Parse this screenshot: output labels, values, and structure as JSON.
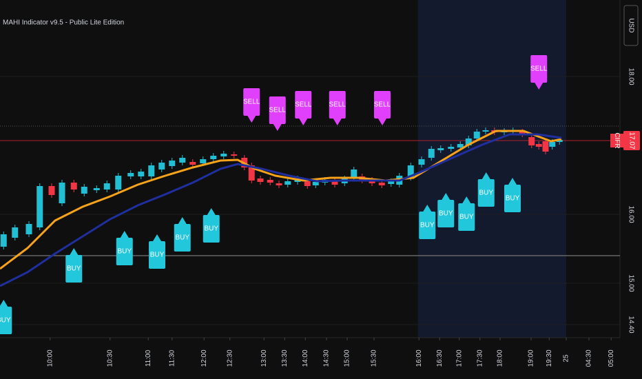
{
  "chart_data": {
    "type": "candlestick",
    "title": "MAHI Indicator v9.5 - Public Lite Edition",
    "currency": "USD",
    "symbol": "CIFR",
    "last_price": 17.07,
    "up_color": "#22bfd4",
    "down_color": "#f23645",
    "grid": true,
    "xlim": [
      0,
      120
    ],
    "ylim": [
      14.21,
      19.11
    ],
    "yticks": [
      {
        "value": 14.4,
        "label": "14.40"
      },
      {
        "value": 15,
        "label": "15.00"
      },
      {
        "value": 16,
        "label": "16.00"
      },
      {
        "value": 18,
        "label": "18.00"
      }
    ],
    "xticks": [
      {
        "value": 9.7,
        "label": "10:00"
      },
      {
        "value": 21.3,
        "label": "10:30"
      },
      {
        "value": 28.7,
        "label": "11:00"
      },
      {
        "value": 33.3,
        "label": "11:30"
      },
      {
        "value": 39.5,
        "label": "12:00"
      },
      {
        "value": 44.5,
        "label": "12:30"
      },
      {
        "value": 51.1,
        "label": "13:00"
      },
      {
        "value": 55.1,
        "label": "13:30"
      },
      {
        "value": 59.1,
        "label": "14:00"
      },
      {
        "value": 63.2,
        "label": "14:30"
      },
      {
        "value": 67.2,
        "label": "15:00"
      },
      {
        "value": 72.4,
        "label": "15:30"
      },
      {
        "value": 81.1,
        "label": "16:00"
      },
      {
        "value": 85.1,
        "label": "16:30"
      },
      {
        "value": 88.9,
        "label": "17:00"
      },
      {
        "value": 92.9,
        "label": "17:30"
      },
      {
        "value": 96.8,
        "label": "18:00"
      },
      {
        "value": 102.8,
        "label": "19:00"
      },
      {
        "value": 106.3,
        "label": "19:30"
      },
      {
        "value": 109.6,
        "label": "25"
      },
      {
        "value": 114,
        "label": "04:30"
      },
      {
        "value": 118.3,
        "label": "05:00"
      }
    ],
    "shade_x": [
      80.9,
      109.6
    ],
    "hlines": [
      {
        "value": 17.28,
        "style": "dotted"
      },
      {
        "value": 15.4,
        "style": "solid"
      }
    ],
    "candles": {
      "x": [
        0.7,
        2.9,
        5.6,
        7.7,
        10,
        12,
        14.3,
        16.3,
        18.7,
        20.7,
        22.9,
        25.3,
        27.3,
        29.3,
        31.3,
        33.3,
        35.3,
        37.3,
        39.3,
        41.3,
        43.3,
        45.3,
        47.3,
        48.7,
        50.4,
        52.3,
        54,
        55.7,
        57.6,
        59.5,
        61.1,
        62.9,
        64.8,
        66.7,
        68.5,
        70.1,
        72,
        73.9,
        75.7,
        77.3,
        79.5,
        81.6,
        83.5,
        85.3,
        87.3,
        89.1,
        90.7,
        92.3,
        94,
        95.7,
        97.6,
        99.3,
        101.1,
        102.9,
        104.3,
        105.6,
        106.9,
        108.3
      ],
      "open": [
        15.53,
        15.66,
        15.71,
        15.81,
        16.41,
        16.16,
        16.46,
        16.3,
        16.35,
        16.36,
        16.36,
        16.55,
        16.55,
        16.55,
        16.65,
        16.7,
        16.75,
        16.76,
        16.74,
        16.8,
        16.84,
        16.87,
        16.82,
        16.71,
        16.52,
        16.5,
        16.45,
        16.43,
        16.47,
        16.48,
        16.42,
        16.46,
        16.48,
        16.45,
        16.54,
        16.55,
        16.5,
        16.46,
        16.44,
        16.43,
        16.53,
        16.72,
        16.82,
        16.93,
        16.95,
        16.97,
        17.0,
        17.1,
        17.2,
        17.22,
        17.19,
        17.2,
        17.2,
        17.12,
        17.02,
        17.06,
        16.98,
        17.05
      ],
      "high": [
        15.75,
        15.85,
        15.9,
        16.45,
        16.45,
        16.5,
        16.5,
        16.44,
        16.42,
        16.49,
        16.6,
        16.64,
        16.66,
        16.75,
        16.79,
        16.82,
        16.86,
        16.8,
        16.84,
        16.89,
        16.92,
        16.91,
        16.86,
        16.75,
        16.56,
        16.54,
        16.49,
        16.52,
        16.56,
        16.52,
        16.51,
        16.54,
        16.52,
        16.56,
        16.69,
        16.59,
        16.54,
        16.5,
        16.52,
        16.6,
        16.75,
        16.84,
        16.99,
        17.0,
        17.02,
        17.06,
        17.14,
        17.24,
        17.26,
        17.26,
        17.25,
        17.26,
        17.24,
        17.16,
        17.06,
        17.1,
        17.09,
        17.12
      ],
      "low": [
        15.49,
        15.62,
        15.67,
        15.77,
        16.24,
        16.12,
        16.32,
        16.26,
        16.31,
        16.32,
        16.32,
        16.51,
        16.51,
        16.51,
        16.61,
        16.66,
        16.71,
        16.68,
        16.7,
        16.76,
        16.8,
        16.81,
        16.64,
        16.45,
        16.43,
        16.42,
        16.38,
        16.39,
        16.43,
        16.37,
        16.38,
        16.42,
        16.39,
        16.41,
        16.5,
        16.45,
        16.41,
        16.38,
        16.4,
        16.39,
        16.49,
        16.68,
        16.78,
        16.89,
        16.91,
        16.93,
        16.96,
        17.06,
        17.16,
        17.15,
        17.15,
        17.16,
        17.12,
        16.96,
        16.94,
        16.87,
        16.94,
        17.01
      ],
      "close": [
        15.71,
        15.81,
        15.86,
        16.41,
        16.28,
        16.46,
        16.36,
        16.4,
        16.38,
        16.45,
        16.56,
        16.6,
        16.62,
        16.71,
        16.75,
        16.78,
        16.82,
        16.72,
        16.8,
        16.85,
        16.88,
        16.85,
        16.68,
        16.49,
        16.47,
        16.46,
        16.42,
        16.48,
        16.52,
        16.41,
        16.47,
        16.5,
        16.43,
        16.52,
        16.65,
        16.49,
        16.45,
        16.42,
        16.48,
        16.56,
        16.71,
        16.8,
        16.95,
        16.96,
        16.98,
        17.02,
        17.1,
        17.2,
        17.22,
        17.19,
        17.21,
        17.22,
        17.16,
        17.0,
        16.98,
        16.91,
        17.05,
        17.08
      ]
    },
    "lines": [
      {
        "color": "#f7a21b",
        "x": [
          0,
          5.33,
          10.67,
          16,
          21.33,
          26.67,
          32,
          37.33,
          42.67,
          46,
          49.33,
          53.33,
          58.67,
          64,
          69.33,
          74.67,
          80,
          84,
          90.67,
          96,
          101.33,
          106.67,
          108.67
        ],
        "values": [
          15.21,
          15.51,
          15.91,
          16.11,
          16.26,
          16.43,
          16.56,
          16.68,
          16.78,
          16.79,
          16.66,
          16.56,
          16.49,
          16.53,
          16.53,
          16.49,
          16.53,
          16.71,
          17.01,
          17.21,
          17.21,
          17.06,
          17.09
        ]
      },
      {
        "color": "#1f2f9e",
        "x": [
          0,
          5.33,
          10.67,
          16,
          21.33,
          26.67,
          32,
          37.33,
          42.67,
          46,
          50.67,
          56,
          61.33,
          66.67,
          72,
          77.33,
          81.33,
          86.67,
          93.33,
          98.67,
          104,
          108.67
        ],
        "values": [
          14.96,
          15.16,
          15.43,
          15.68,
          15.93,
          16.13,
          16.29,
          16.46,
          16.66,
          16.73,
          16.66,
          16.56,
          16.48,
          16.49,
          16.49,
          16.49,
          16.61,
          16.79,
          17.01,
          17.16,
          17.16,
          17.11
        ]
      }
    ],
    "signals": [
      {
        "label": "BUY",
        "x": 0.7,
        "y": 14.76
      },
      {
        "label": "BUY",
        "x": 14.3,
        "y": 15.51
      },
      {
        "label": "BUY",
        "x": 24.1,
        "y": 15.76
      },
      {
        "label": "BUY",
        "x": 30.4,
        "y": 15.71
      },
      {
        "label": "BUY",
        "x": 35.3,
        "y": 15.96
      },
      {
        "label": "BUY",
        "x": 40.9,
        "y": 16.09
      },
      {
        "label": "BUY",
        "x": 82.7,
        "y": 16.14
      },
      {
        "label": "BUY",
        "x": 86.3,
        "y": 16.31
      },
      {
        "label": "BUY",
        "x": 90.3,
        "y": 16.26
      },
      {
        "label": "BUY",
        "x": 94.1,
        "y": 16.61
      },
      {
        "label": "BUY",
        "x": 99.2,
        "y": 16.53
      },
      {
        "label": "SELL",
        "x": 48.7,
        "y": 17.33
      },
      {
        "label": "SELL",
        "x": 53.7,
        "y": 17.21
      },
      {
        "label": "SELL",
        "x": 58.7,
        "y": 17.29
      },
      {
        "label": "SELL",
        "x": 65.3,
        "y": 17.29
      },
      {
        "label": "SELL",
        "x": 74,
        "y": 17.29
      },
      {
        "label": "SELL",
        "x": 104.3,
        "y": 17.81
      }
    ]
  }
}
